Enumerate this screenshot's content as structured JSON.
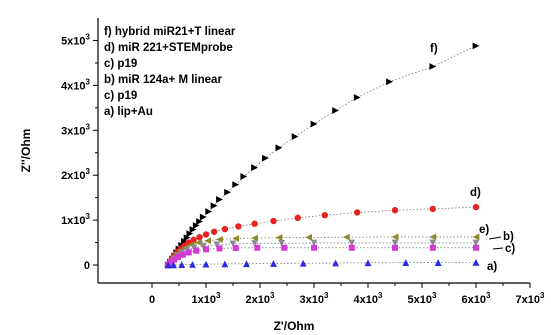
{
  "chart_data": {
    "type": "scatter",
    "xlabel": "Z'/Ohm",
    "ylabel": "Z''/Ohm",
    "xlim": [
      -1000,
      7000
    ],
    "ylim": [
      -400,
      5500
    ],
    "x_ticks": [
      {
        "value": 0,
        "label": "0",
        "sup": ""
      },
      {
        "value": 1000,
        "label": "1x10",
        "sup": "3"
      },
      {
        "value": 2000,
        "label": "2x10",
        "sup": "3"
      },
      {
        "value": 3000,
        "label": "3x10",
        "sup": "3"
      },
      {
        "value": 4000,
        "label": "4x10",
        "sup": "3"
      },
      {
        "value": 5000,
        "label": "5x10",
        "sup": "3"
      },
      {
        "value": 6000,
        "label": "6x10",
        "sup": "3"
      },
      {
        "value": 7000,
        "label": "7x10",
        "sup": "3"
      }
    ],
    "y_ticks": [
      {
        "value": 0,
        "label": "0",
        "sup": ""
      },
      {
        "value": 1000,
        "label": "1x10",
        "sup": "3"
      },
      {
        "value": 2000,
        "label": "2x10",
        "sup": "3"
      },
      {
        "value": 3000,
        "label": "3x10",
        "sup": "3"
      },
      {
        "value": 4000,
        "label": "4x10",
        "sup": "3"
      },
      {
        "value": 5000,
        "label": "5x10",
        "sup": "3"
      }
    ],
    "grid": false,
    "legend_position": "top-left",
    "legend": [
      "f) hybrid miR21+T linear",
      "d) miR 221+STEMprobe",
      "c) p19",
      "b) miR 124a+ M linear",
      "c) p19",
      "a) lip+Au"
    ],
    "series": [
      {
        "label": "f)",
        "marker": "triangle-right",
        "color": "#000000",
        "x": [
          300,
          340,
          380,
          420,
          460,
          500,
          550,
          600,
          650,
          700,
          760,
          820,
          880,
          950,
          1050,
          1150,
          1250,
          1400,
          1550,
          1700,
          1900,
          2100,
          2350,
          2650,
          3000,
          3400,
          3800,
          4400,
          5200,
          6000
        ],
        "y": [
          0,
          60,
          130,
          200,
          280,
          360,
          440,
          530,
          610,
          700,
          790,
          880,
          970,
          1070,
          1190,
          1320,
          1460,
          1620,
          1790,
          1970,
          2170,
          2380,
          2610,
          2860,
          3140,
          3440,
          3730,
          4080,
          4420,
          4880
        ]
      },
      {
        "label": "d)",
        "marker": "circle",
        "color": "#e8231f",
        "x": [
          300,
          340,
          380,
          430,
          480,
          540,
          600,
          680,
          770,
          880,
          1000,
          1150,
          1350,
          1600,
          1900,
          2250,
          2700,
          3200,
          3800,
          4500,
          5200,
          6000
        ],
        "y": [
          0,
          80,
          160,
          230,
          300,
          370,
          430,
          500,
          560,
          620,
          680,
          740,
          800,
          860,
          920,
          980,
          1050,
          1110,
          1170,
          1220,
          1250,
          1290
        ]
      },
      {
        "label": "e)",
        "marker": "triangle-left",
        "color": "#8c8a2a",
        "x": [
          300,
          350,
          400,
          460,
          530,
          620,
          730,
          860,
          1030,
          1250,
          1550,
          1900,
          2350,
          2900,
          3600,
          4500,
          5200,
          6000
        ],
        "y": [
          0,
          80,
          160,
          240,
          320,
          390,
          450,
          500,
          540,
          570,
          590,
          600,
          610,
          615,
          620,
          625,
          625,
          625
        ]
      },
      {
        "label": "b)",
        "marker": "triangle-down",
        "color": "#8c8c8c",
        "x": [
          300,
          350,
          400,
          470,
          550,
          650,
          780,
          950,
          1200,
          1500,
          1900,
          2400,
          3000,
          3700,
          4500,
          5200,
          6000
        ],
        "y": [
          0,
          70,
          140,
          210,
          270,
          330,
          380,
          420,
          450,
          470,
          480,
          485,
          490,
          490,
          490,
          490,
          490
        ]
      },
      {
        "label": "c)",
        "marker": "square",
        "color": "#d63ad6",
        "x": [
          300,
          350,
          410,
          480,
          570,
          680,
          820,
          1000,
          1250,
          1550,
          1950,
          2450,
          3000,
          3700,
          4500,
          5200,
          6000
        ],
        "y": [
          0,
          60,
          120,
          180,
          230,
          280,
          320,
          350,
          370,
          380,
          385,
          385,
          385,
          385,
          385,
          385,
          385
        ]
      },
      {
        "label": "a)",
        "marker": "triangle-up",
        "color": "#2a2ae0",
        "x": [
          300,
          400,
          550,
          750,
          1000,
          1350,
          1750,
          2250,
          2800,
          3400,
          4000,
          4700,
          5300,
          6000
        ],
        "y": [
          0,
          5,
          10,
          15,
          20,
          25,
          30,
          35,
          40,
          45,
          50,
          55,
          55,
          60
        ]
      }
    ]
  }
}
